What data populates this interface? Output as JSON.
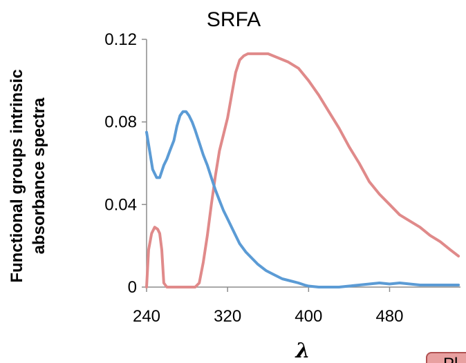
{
  "chart_data": {
    "type": "line",
    "title": "SRFA",
    "xlabel": "λ",
    "ylabel_lines": [
      "Functional groups intrinsic",
      "absorbance spectra"
    ],
    "xlim": [
      240,
      550
    ],
    "ylim": [
      0,
      0.12
    ],
    "xticks": [
      "240",
      "320",
      "400",
      "480"
    ],
    "xtick_values": [
      240,
      320,
      400,
      480
    ],
    "yticks": [
      "0",
      "0.04",
      "0.08",
      "0.12"
    ],
    "ytick_values": [
      0,
      0.04,
      0.08,
      0.12
    ],
    "grid": false,
    "legend_fragment": "Pl",
    "series": [
      {
        "color": "#e08a8a",
        "x": [
          240,
          242,
          245,
          248,
          251,
          253,
          255,
          257,
          260,
          263,
          270,
          280,
          288,
          292,
          296,
          300,
          304,
          308,
          312,
          316,
          320,
          324,
          328,
          332,
          336,
          340,
          350,
          360,
          370,
          380,
          390,
          400,
          410,
          420,
          430,
          440,
          450,
          460,
          470,
          480,
          490,
          500,
          510,
          520,
          530,
          540,
          548
        ],
        "y": [
          0,
          0.018,
          0.026,
          0.029,
          0.028,
          0.026,
          0.018,
          0.002,
          0,
          0,
          0,
          0,
          0,
          0.002,
          0.012,
          0.025,
          0.04,
          0.054,
          0.066,
          0.074,
          0.082,
          0.093,
          0.104,
          0.11,
          0.112,
          0.113,
          0.113,
          0.113,
          0.111,
          0.109,
          0.106,
          0.1,
          0.093,
          0.085,
          0.077,
          0.068,
          0.06,
          0.051,
          0.045,
          0.04,
          0.035,
          0.032,
          0.029,
          0.025,
          0.022,
          0.018,
          0.015
        ]
      },
      {
        "color": "#5b9bd5",
        "x": [
          240,
          243,
          246,
          250,
          253,
          257,
          260,
          263,
          267,
          270,
          273,
          276,
          279,
          282,
          285,
          288,
          292,
          296,
          300,
          304,
          308,
          312,
          316,
          320,
          326,
          332,
          338,
          344,
          350,
          358,
          366,
          374,
          382,
          390,
          396,
          400,
          410,
          420,
          430,
          440,
          450,
          460,
          470,
          480,
          490,
          500,
          510,
          520,
          530,
          540,
          548
        ],
        "y": [
          0.075,
          0.066,
          0.057,
          0.053,
          0.053,
          0.059,
          0.062,
          0.066,
          0.071,
          0.078,
          0.083,
          0.085,
          0.085,
          0.083,
          0.08,
          0.076,
          0.07,
          0.064,
          0.059,
          0.053,
          0.047,
          0.042,
          0.037,
          0.033,
          0.027,
          0.021,
          0.017,
          0.014,
          0.011,
          0.008,
          0.006,
          0.004,
          0.003,
          0.002,
          0.001,
          0.0005,
          0,
          0,
          0,
          0.0005,
          0.001,
          0.0015,
          0.002,
          0.0015,
          0.002,
          0.0015,
          0.001,
          0.001,
          0.001,
          0.001,
          0.001
        ]
      }
    ]
  }
}
